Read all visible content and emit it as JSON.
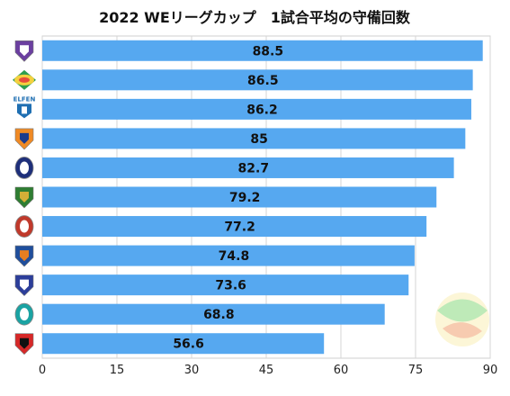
{
  "chart_data": {
    "type": "bar",
    "orientation": "horizontal",
    "title": "2022 WEリーグカップ　1試合平均の守備回数",
    "xlabel": "",
    "ylabel": "",
    "xlim": [
      0,
      90
    ],
    "xticks": [
      0,
      15,
      30,
      45,
      60,
      75,
      90
    ],
    "grid": true,
    "legend": "none",
    "bar_color": "#56a8f0",
    "categories": [
      "team-1",
      "team-2",
      "team-3",
      "team-4",
      "team-5",
      "team-6",
      "team-7",
      "team-8",
      "team-9",
      "team-10",
      "team-11"
    ],
    "values": [
      88.5,
      86.5,
      86.2,
      85,
      82.7,
      79.2,
      77.2,
      74.8,
      73.6,
      68.8,
      56.6
    ],
    "value_labels": [
      "88.5",
      "86.5",
      "86.2",
      "85",
      "82.7",
      "79.2",
      "77.2",
      "74.8",
      "73.6",
      "68.8",
      "56.6"
    ],
    "logos": [
      {
        "name": "team-logo-1",
        "colors": [
          "#6b3fa0",
          "#ffffff"
        ]
      },
      {
        "name": "team-logo-2",
        "colors": [
          "#f4d03f",
          "#2e9e4f",
          "#e74c3c"
        ]
      },
      {
        "name": "team-logo-3",
        "text": "ELFEN",
        "colors": [
          "#1f6fb2",
          "#ffffff"
        ]
      },
      {
        "name": "team-logo-4",
        "colors": [
          "#f08a24",
          "#1d3b8c"
        ]
      },
      {
        "name": "team-logo-5",
        "colors": [
          "#1e2f7a",
          "#ffffff"
        ]
      },
      {
        "name": "team-logo-6",
        "colors": [
          "#2e7d32",
          "#d4af37"
        ]
      },
      {
        "name": "team-logo-7",
        "colors": [
          "#c0392b",
          "#ffffff"
        ]
      },
      {
        "name": "team-logo-8",
        "colors": [
          "#1f4e9c",
          "#e67e22"
        ]
      },
      {
        "name": "team-logo-9",
        "colors": [
          "#2c3e9a",
          "#ffffff"
        ]
      },
      {
        "name": "team-logo-10",
        "colors": [
          "#1aa3a3",
          "#ffffff"
        ]
      },
      {
        "name": "team-logo-11",
        "colors": [
          "#d62828",
          "#111111"
        ]
      }
    ]
  }
}
